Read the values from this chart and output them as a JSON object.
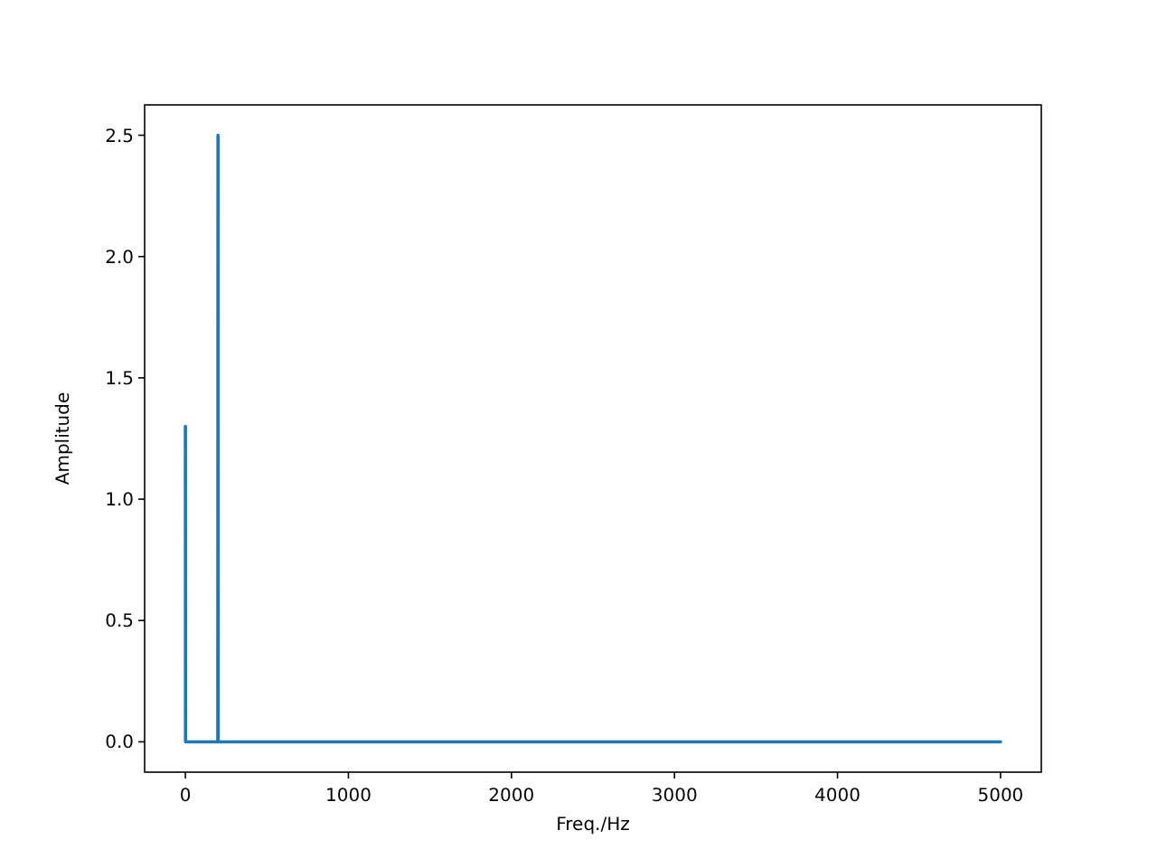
{
  "chart_data": {
    "type": "line",
    "xlabel": "Freq./Hz",
    "ylabel": "Amplitude",
    "series": [
      {
        "color": "#1f77b4",
        "x": [
          0,
          1,
          199,
          200,
          201,
          5000
        ],
        "values": [
          1.3,
          0,
          0,
          2.5,
          0,
          0
        ]
      }
    ],
    "xlim": [
      -250,
      5250
    ],
    "xticks": [
      0,
      1000,
      2000,
      3000,
      4000,
      5000
    ],
    "ylim": [
      -0.125,
      2.625
    ],
    "yticks": [
      {
        "value": 0,
        "label": "0.0"
      },
      {
        "value": 0.5,
        "label": "0.5"
      },
      {
        "value": 1,
        "label": "1.0"
      },
      {
        "value": 1.5,
        "label": "1.5"
      },
      {
        "value": 2,
        "label": "2.0"
      },
      {
        "value": 2.5,
        "label": "2.5"
      }
    ],
    "grid": false
  }
}
